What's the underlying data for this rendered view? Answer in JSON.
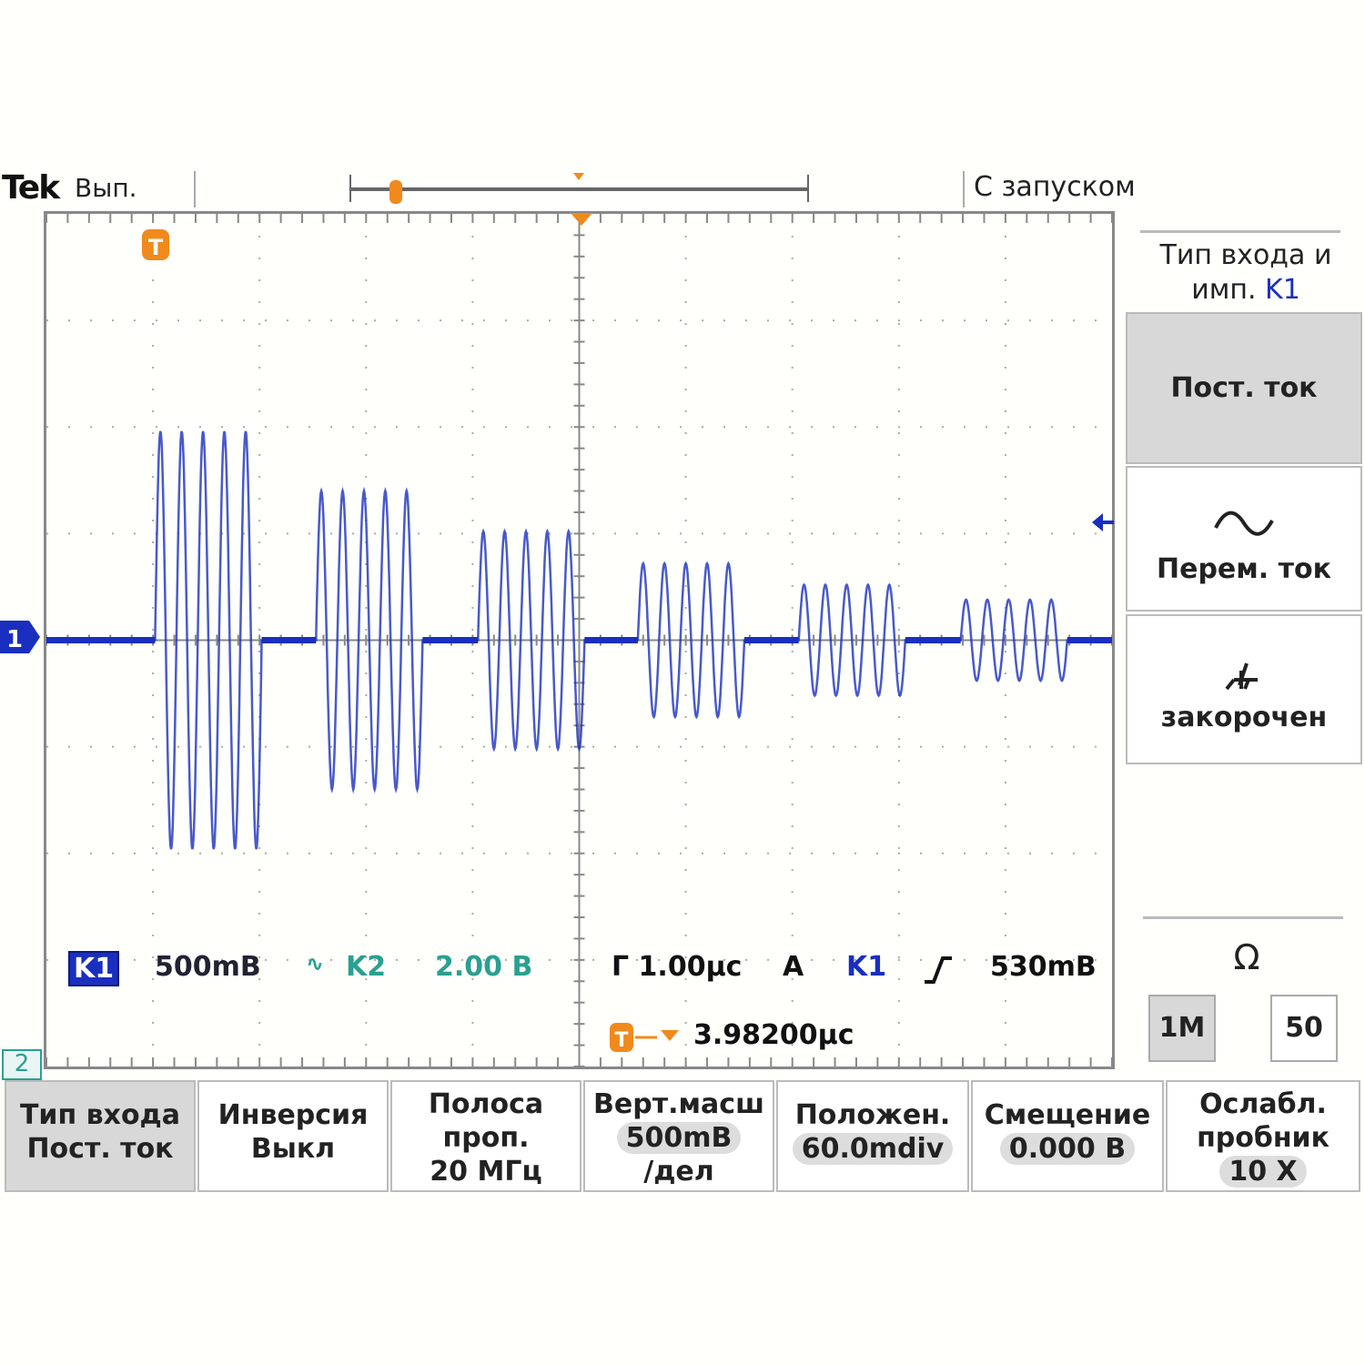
{
  "header": {
    "brand": "Tek",
    "run_state": "Вып.",
    "trigger_state": "С запуском"
  },
  "colors": {
    "ch1": "#1a2fbf",
    "ch2": "#2aa090",
    "trigger": "#f08a1c",
    "grid": "#999999"
  },
  "markers": {
    "trigger_marker": "T",
    "ch1_marker": "1",
    "ch2_marker": "2"
  },
  "readouts": {
    "ch1_label": "K1",
    "ch1_scale": "500mB",
    "ch2_icon": "bandwidth-limit-icon",
    "ch2_label": "K2",
    "ch2_scale": "2.00 B",
    "timebase": "Г 1.00µc",
    "trigger_mode": "A",
    "trigger_source": "K1",
    "trigger_slope_icon": "rising-edge-icon",
    "trigger_level": "530mB",
    "trigger_delay": "3.98200µc"
  },
  "side_menu": {
    "title_line1": "Тип входа и",
    "title_line2": "имп.",
    "title_channel": "K1",
    "options": [
      {
        "label": "Пост. ток",
        "selected": true
      },
      {
        "label": "Перем. ток",
        "icon": "sine-wave-icon",
        "selected": false
      },
      {
        "label": "закорочен",
        "icon": "ground-icon",
        "selected": false
      }
    ],
    "impedance_symbol": "Ω",
    "impedance_options": [
      {
        "label": "1M",
        "selected": true
      },
      {
        "label": "50",
        "selected": false
      }
    ]
  },
  "bottom_menu": [
    {
      "line1": "Тип входа",
      "line2": "Пост. ток",
      "selected": true
    },
    {
      "line1": "Инверсия",
      "line2": "Выкл"
    },
    {
      "line1": "Полоса",
      "line2": "проп.",
      "line3": "20 МГц"
    },
    {
      "line1": "Верт.масш",
      "line2": "500mB",
      "line3": "/дел"
    },
    {
      "line1": "Положен.",
      "line2": "60.0mdiv"
    },
    {
      "line1": "Смещение",
      "line2": "0.000 B"
    },
    {
      "line1": "Ослабл.",
      "line2": "пробник",
      "line3": "10 X"
    }
  ],
  "chart_data": {
    "type": "line",
    "divisions": {
      "x": 10,
      "y": 8
    },
    "volts_per_div": 0.5,
    "time_per_div_us": 1.0,
    "bursts": [
      {
        "start_us": -3.98,
        "cycles": 5,
        "amplitude_V": 0.98
      },
      {
        "start_us": -2.47,
        "cycles": 5,
        "amplitude_V": 0.7
      },
      {
        "start_us": -0.95,
        "cycles": 5,
        "amplitude_V": 0.51
      },
      {
        "start_us": 0.55,
        "cycles": 5,
        "amplitude_V": 0.36
      },
      {
        "start_us": 2.06,
        "cycles": 5,
        "amplitude_V": 0.26
      },
      {
        "start_us": 3.58,
        "cycles": 5,
        "amplitude_V": 0.19
      }
    ]
  }
}
